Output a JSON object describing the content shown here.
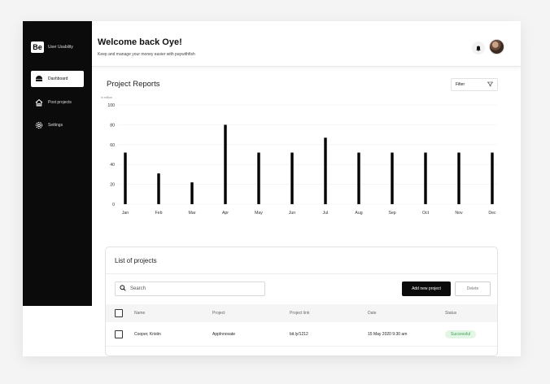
{
  "brand": {
    "logo": "Be",
    "name": "User Usability"
  },
  "sidebar": {
    "items": [
      {
        "label": "Dashboard",
        "icon": "dashboard-icon",
        "active": true
      },
      {
        "label": "Post projects",
        "icon": "home-icon",
        "active": false
      },
      {
        "label": "Settings",
        "icon": "gear-icon",
        "active": false
      }
    ]
  },
  "header": {
    "title": "Welcome back Oye!",
    "subtitle": "Keep and manage your money easier with paywithfish"
  },
  "reports": {
    "title": "Project Reports",
    "filter_label": "Filter"
  },
  "chart_data": {
    "type": "bar",
    "unit_label": "in million",
    "categories": [
      "Jan",
      "Feb",
      "Mar",
      "Apr",
      "May",
      "Jun",
      "Jul",
      "Aug",
      "Sep",
      "Oct",
      "Nov",
      "Dec"
    ],
    "values": [
      52,
      31,
      22,
      80,
      52,
      52,
      67,
      52,
      52,
      52,
      52,
      52
    ],
    "yticks": [
      100,
      80,
      60,
      40,
      20,
      0
    ],
    "ylim": [
      0,
      100
    ],
    "grid": true,
    "bar_color": "#000000"
  },
  "projects": {
    "title": "List of projects",
    "search_placeholder": "Search",
    "add_button": "Add new project",
    "delete_button": "Delete",
    "columns": [
      "Name",
      "Project",
      "Project link",
      "Date",
      "Status"
    ],
    "rows": [
      {
        "name": "Cooper, Kristin",
        "project": "AppInnovate",
        "link": "bit.ly/1212",
        "date": "15 May 2020 9:30 am",
        "status": "Successful"
      }
    ],
    "status_color": "#3aa257"
  }
}
